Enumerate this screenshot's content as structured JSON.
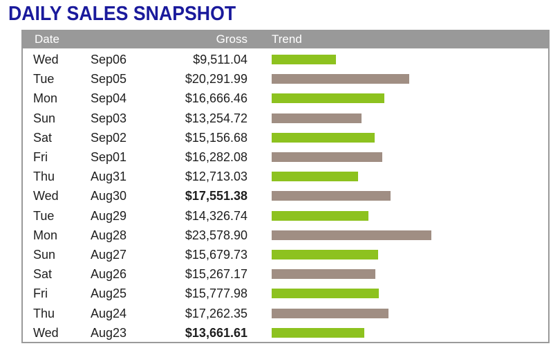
{
  "title": "DAILY SALES SNAPSHOT",
  "header": {
    "date": "Date",
    "gross": "Gross",
    "trend": "Trend"
  },
  "colors": {
    "title": "#1a1a9c",
    "header_bg": "#999999",
    "bar_green": "#8dc21f",
    "bar_taupe": "#a08e83"
  },
  "chart_data": {
    "type": "bar",
    "title": "DAILY SALES SNAPSHOT",
    "xlabel": "Trend",
    "ylabel": "Date",
    "orientation": "horizontal",
    "xlim": [
      0,
      25000
    ],
    "rows": [
      {
        "day": "Wed",
        "date": "Sep06",
        "gross": "$9,511.04",
        "value": 9511.04,
        "bold": false,
        "color": "green"
      },
      {
        "day": "Tue",
        "date": "Sep05",
        "gross": "$20,291.99",
        "value": 20291.99,
        "bold": false,
        "color": "taupe"
      },
      {
        "day": "Mon",
        "date": "Sep04",
        "gross": "$16,666.46",
        "value": 16666.46,
        "bold": false,
        "color": "green"
      },
      {
        "day": "Sun",
        "date": "Sep03",
        "gross": "$13,254.72",
        "value": 13254.72,
        "bold": false,
        "color": "taupe"
      },
      {
        "day": "Sat",
        "date": "Sep02",
        "gross": "$15,156.68",
        "value": 15156.68,
        "bold": false,
        "color": "green"
      },
      {
        "day": "Fri",
        "date": "Sep01",
        "gross": "$16,282.08",
        "value": 16282.08,
        "bold": false,
        "color": "taupe"
      },
      {
        "day": "Thu",
        "date": "Aug31",
        "gross": "$12,713.03",
        "value": 12713.03,
        "bold": false,
        "color": "green"
      },
      {
        "day": "Wed",
        "date": "Aug30",
        "gross": "$17,551.38",
        "value": 17551.38,
        "bold": true,
        "color": "taupe"
      },
      {
        "day": "Tue",
        "date": "Aug29",
        "gross": "$14,326.74",
        "value": 14326.74,
        "bold": false,
        "color": "green"
      },
      {
        "day": "Mon",
        "date": "Aug28",
        "gross": "$23,578.90",
        "value": 23578.9,
        "bold": false,
        "color": "taupe"
      },
      {
        "day": "Sun",
        "date": "Aug27",
        "gross": "$15,679.73",
        "value": 15679.73,
        "bold": false,
        "color": "green"
      },
      {
        "day": "Sat",
        "date": "Aug26",
        "gross": "$15,267.17",
        "value": 15267.17,
        "bold": false,
        "color": "taupe"
      },
      {
        "day": "Fri",
        "date": "Aug25",
        "gross": "$15,777.98",
        "value": 15777.98,
        "bold": false,
        "color": "green"
      },
      {
        "day": "Thu",
        "date": "Aug24",
        "gross": "$17,262.35",
        "value": 17262.35,
        "bold": false,
        "color": "taupe"
      },
      {
        "day": "Wed",
        "date": "Aug23",
        "gross": "$13,661.61",
        "value": 13661.61,
        "bold": true,
        "color": "green"
      }
    ]
  }
}
